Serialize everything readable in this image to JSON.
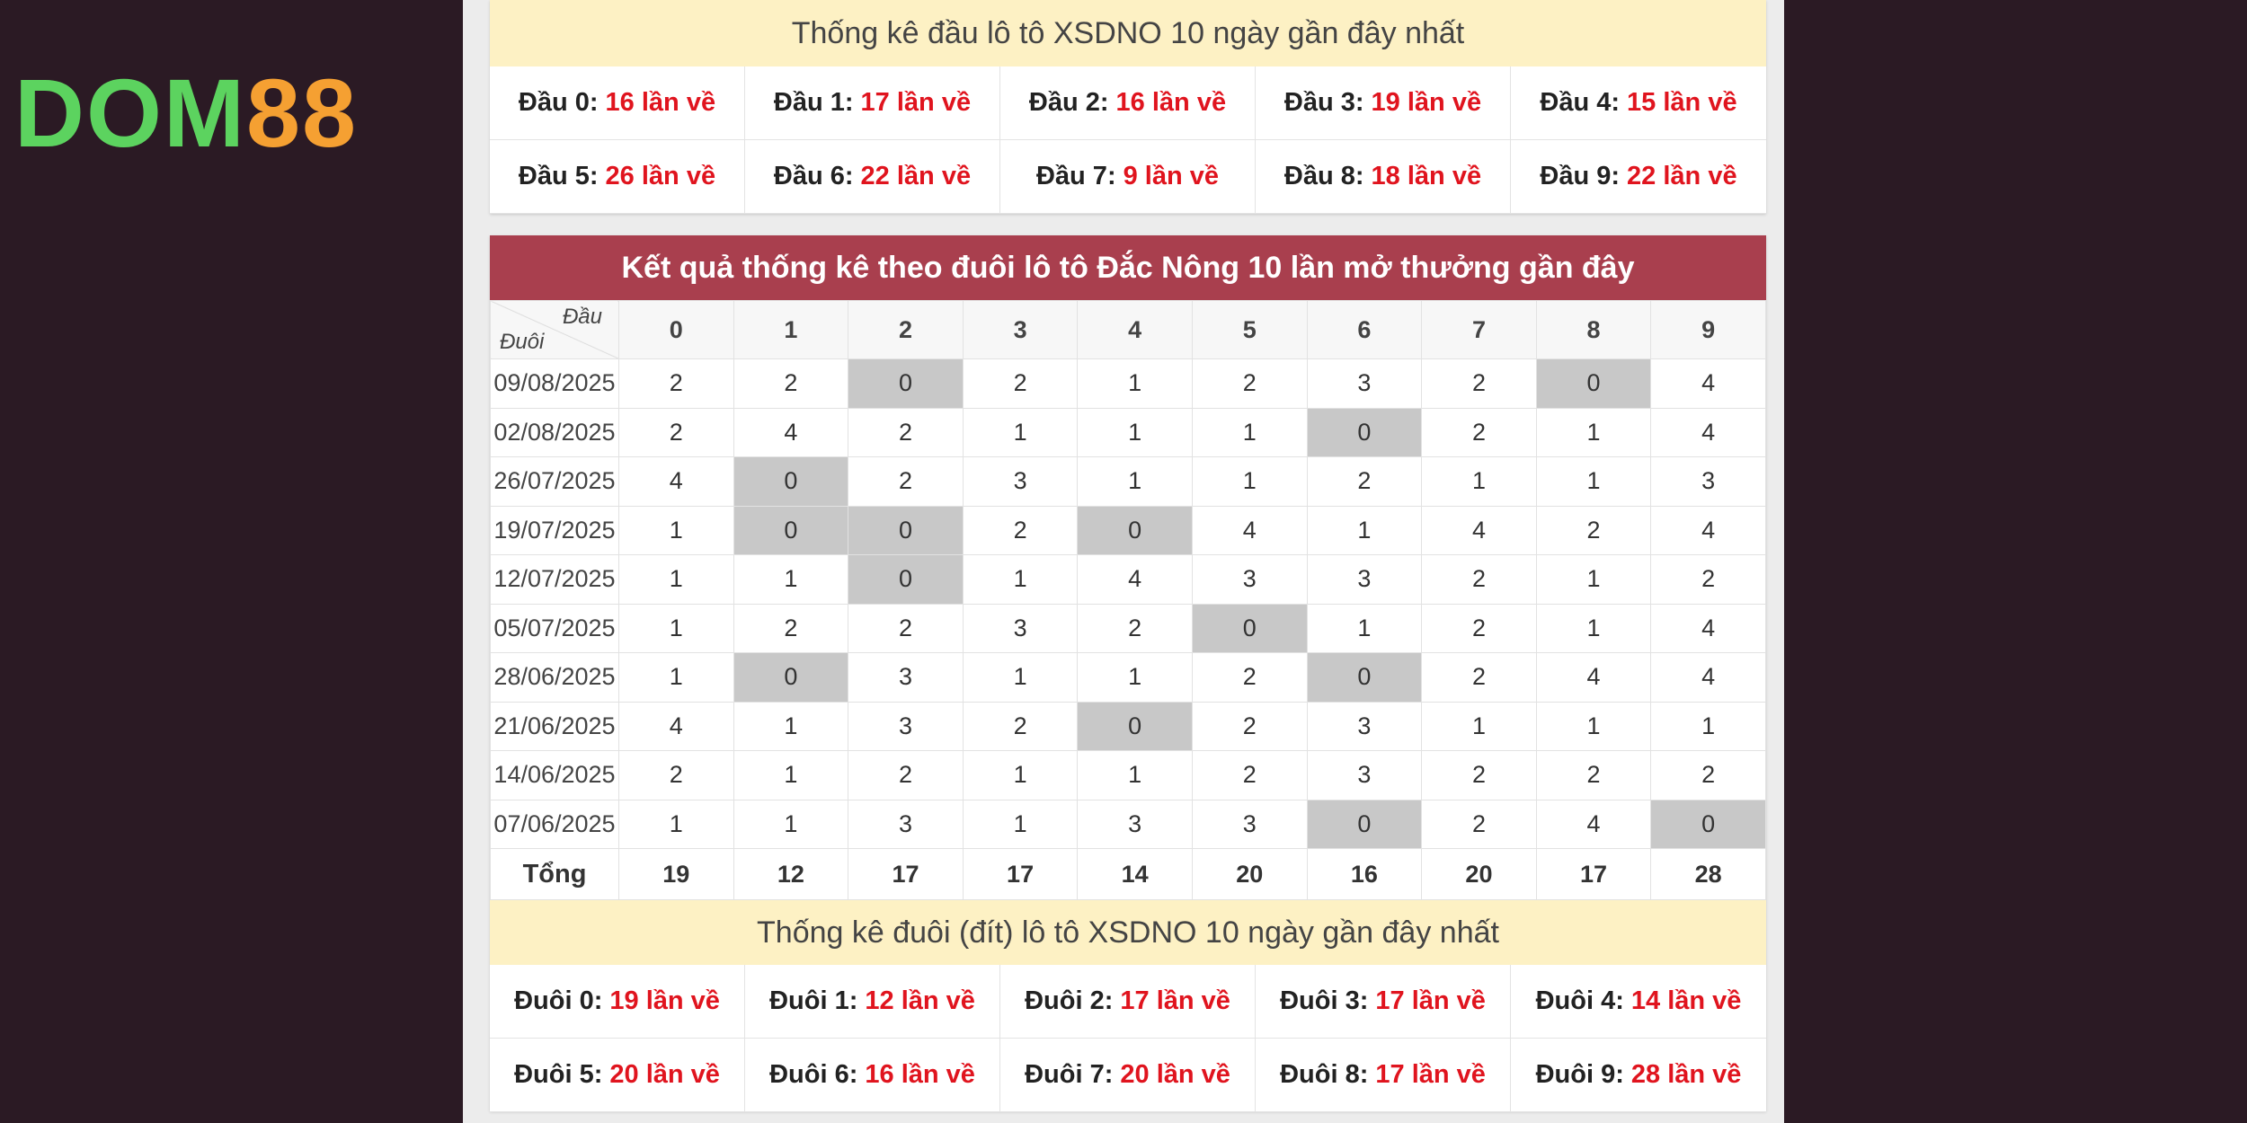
{
  "logo": {
    "part1": "DOM",
    "part2": "88"
  },
  "head_stats": {
    "title": "Thống kê đầu lô tô XSDNO 10 ngày gần đây nhất",
    "items": [
      {
        "label": "Đầu 0:",
        "value": "16 lần về"
      },
      {
        "label": "Đầu 1:",
        "value": "17 lần về"
      },
      {
        "label": "Đầu 2:",
        "value": "16 lần về"
      },
      {
        "label": "Đầu 3:",
        "value": "19 lần về"
      },
      {
        "label": "Đầu 4:",
        "value": "15 lần về"
      },
      {
        "label": "Đầu 5:",
        "value": "26 lần về"
      },
      {
        "label": "Đầu 6:",
        "value": "22 lần về"
      },
      {
        "label": "Đầu 7:",
        "value": "9 lần về"
      },
      {
        "label": "Đầu 8:",
        "value": "18 lần về"
      },
      {
        "label": "Đầu 9:",
        "value": "22 lần về"
      }
    ]
  },
  "tail_table": {
    "title": "Kết quả thống kê theo đuôi lô tô Đắc Nông 10 lần mở thưởng gần đây",
    "corner_top": "Đầu",
    "corner_bottom": "Đuôi",
    "columns": [
      "0",
      "1",
      "2",
      "3",
      "4",
      "5",
      "6",
      "7",
      "8",
      "9"
    ],
    "rows": [
      {
        "date": "09/08/2025",
        "values": [
          "2",
          "2",
          "0",
          "2",
          "1",
          "2",
          "3",
          "2",
          "0",
          "4"
        ]
      },
      {
        "date": "02/08/2025",
        "values": [
          "2",
          "4",
          "2",
          "1",
          "1",
          "1",
          "0",
          "2",
          "1",
          "4"
        ]
      },
      {
        "date": "26/07/2025",
        "values": [
          "4",
          "0",
          "2",
          "3",
          "1",
          "1",
          "2",
          "1",
          "1",
          "3"
        ]
      },
      {
        "date": "19/07/2025",
        "values": [
          "1",
          "0",
          "0",
          "2",
          "0",
          "4",
          "1",
          "4",
          "2",
          "4"
        ]
      },
      {
        "date": "12/07/2025",
        "values": [
          "1",
          "1",
          "0",
          "1",
          "4",
          "3",
          "3",
          "2",
          "1",
          "2"
        ]
      },
      {
        "date": "05/07/2025",
        "values": [
          "1",
          "2",
          "2",
          "3",
          "2",
          "0",
          "1",
          "2",
          "1",
          "4"
        ]
      },
      {
        "date": "28/06/2025",
        "values": [
          "1",
          "0",
          "3",
          "1",
          "1",
          "2",
          "0",
          "2",
          "4",
          "4"
        ]
      },
      {
        "date": "21/06/2025",
        "values": [
          "4",
          "1",
          "3",
          "2",
          "0",
          "2",
          "3",
          "1",
          "1",
          "1"
        ]
      },
      {
        "date": "14/06/2025",
        "values": [
          "2",
          "1",
          "2",
          "1",
          "1",
          "2",
          "3",
          "2",
          "2",
          "2"
        ]
      },
      {
        "date": "07/06/2025",
        "values": [
          "1",
          "1",
          "3",
          "1",
          "3",
          "3",
          "0",
          "2",
          "4",
          "0"
        ]
      }
    ],
    "total_label": "Tổng",
    "totals": [
      "19",
      "12",
      "17",
      "17",
      "14",
      "20",
      "16",
      "20",
      "17",
      "28"
    ]
  },
  "tail_stats": {
    "title": "Thống kê đuôi (đít) lô tô XSDNO 10 ngày gần đây nhất",
    "items": [
      {
        "label": "Đuôi 0:",
        "value": "19 lần về"
      },
      {
        "label": "Đuôi 1:",
        "value": "12 lần về"
      },
      {
        "label": "Đuôi 2:",
        "value": "17 lần về"
      },
      {
        "label": "Đuôi 3:",
        "value": "17 lần về"
      },
      {
        "label": "Đuôi 4:",
        "value": "14 lần về"
      },
      {
        "label": "Đuôi 5:",
        "value": "20 lần về"
      },
      {
        "label": "Đuôi 6:",
        "value": "16 lần về"
      },
      {
        "label": "Đuôi 7:",
        "value": "20 lần về"
      },
      {
        "label": "Đuôi 8:",
        "value": "17 lần về"
      },
      {
        "label": "Đuôi 9:",
        "value": "28 lần về"
      }
    ]
  }
}
